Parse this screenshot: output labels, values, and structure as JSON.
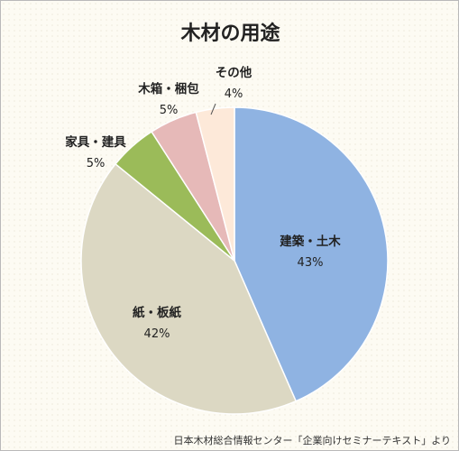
{
  "chart_data": {
    "type": "pie",
    "title": "木材の用途",
    "slices": [
      {
        "label": "建築・土木",
        "value": 43,
        "value_label": "43%",
        "color": "#8fb3e2"
      },
      {
        "label": "紙・板紙",
        "value": 42,
        "value_label": "42%",
        "color": "#dcd8c3"
      },
      {
        "label": "家具・建具",
        "value": 5,
        "value_label": "5%",
        "color": "#9bbb59"
      },
      {
        "label": "木箱・梱包",
        "value": 5,
        "value_label": "5%",
        "color": "#e6b9b8"
      },
      {
        "label": "その他",
        "value": 4,
        "value_label": "4%",
        "color": "#fde9d9"
      }
    ],
    "start": "12 o'clock",
    "direction": "clockwise",
    "legend": "none"
  },
  "source": "日本木材総合情報センター「企業向けセミナーテキスト」より"
}
